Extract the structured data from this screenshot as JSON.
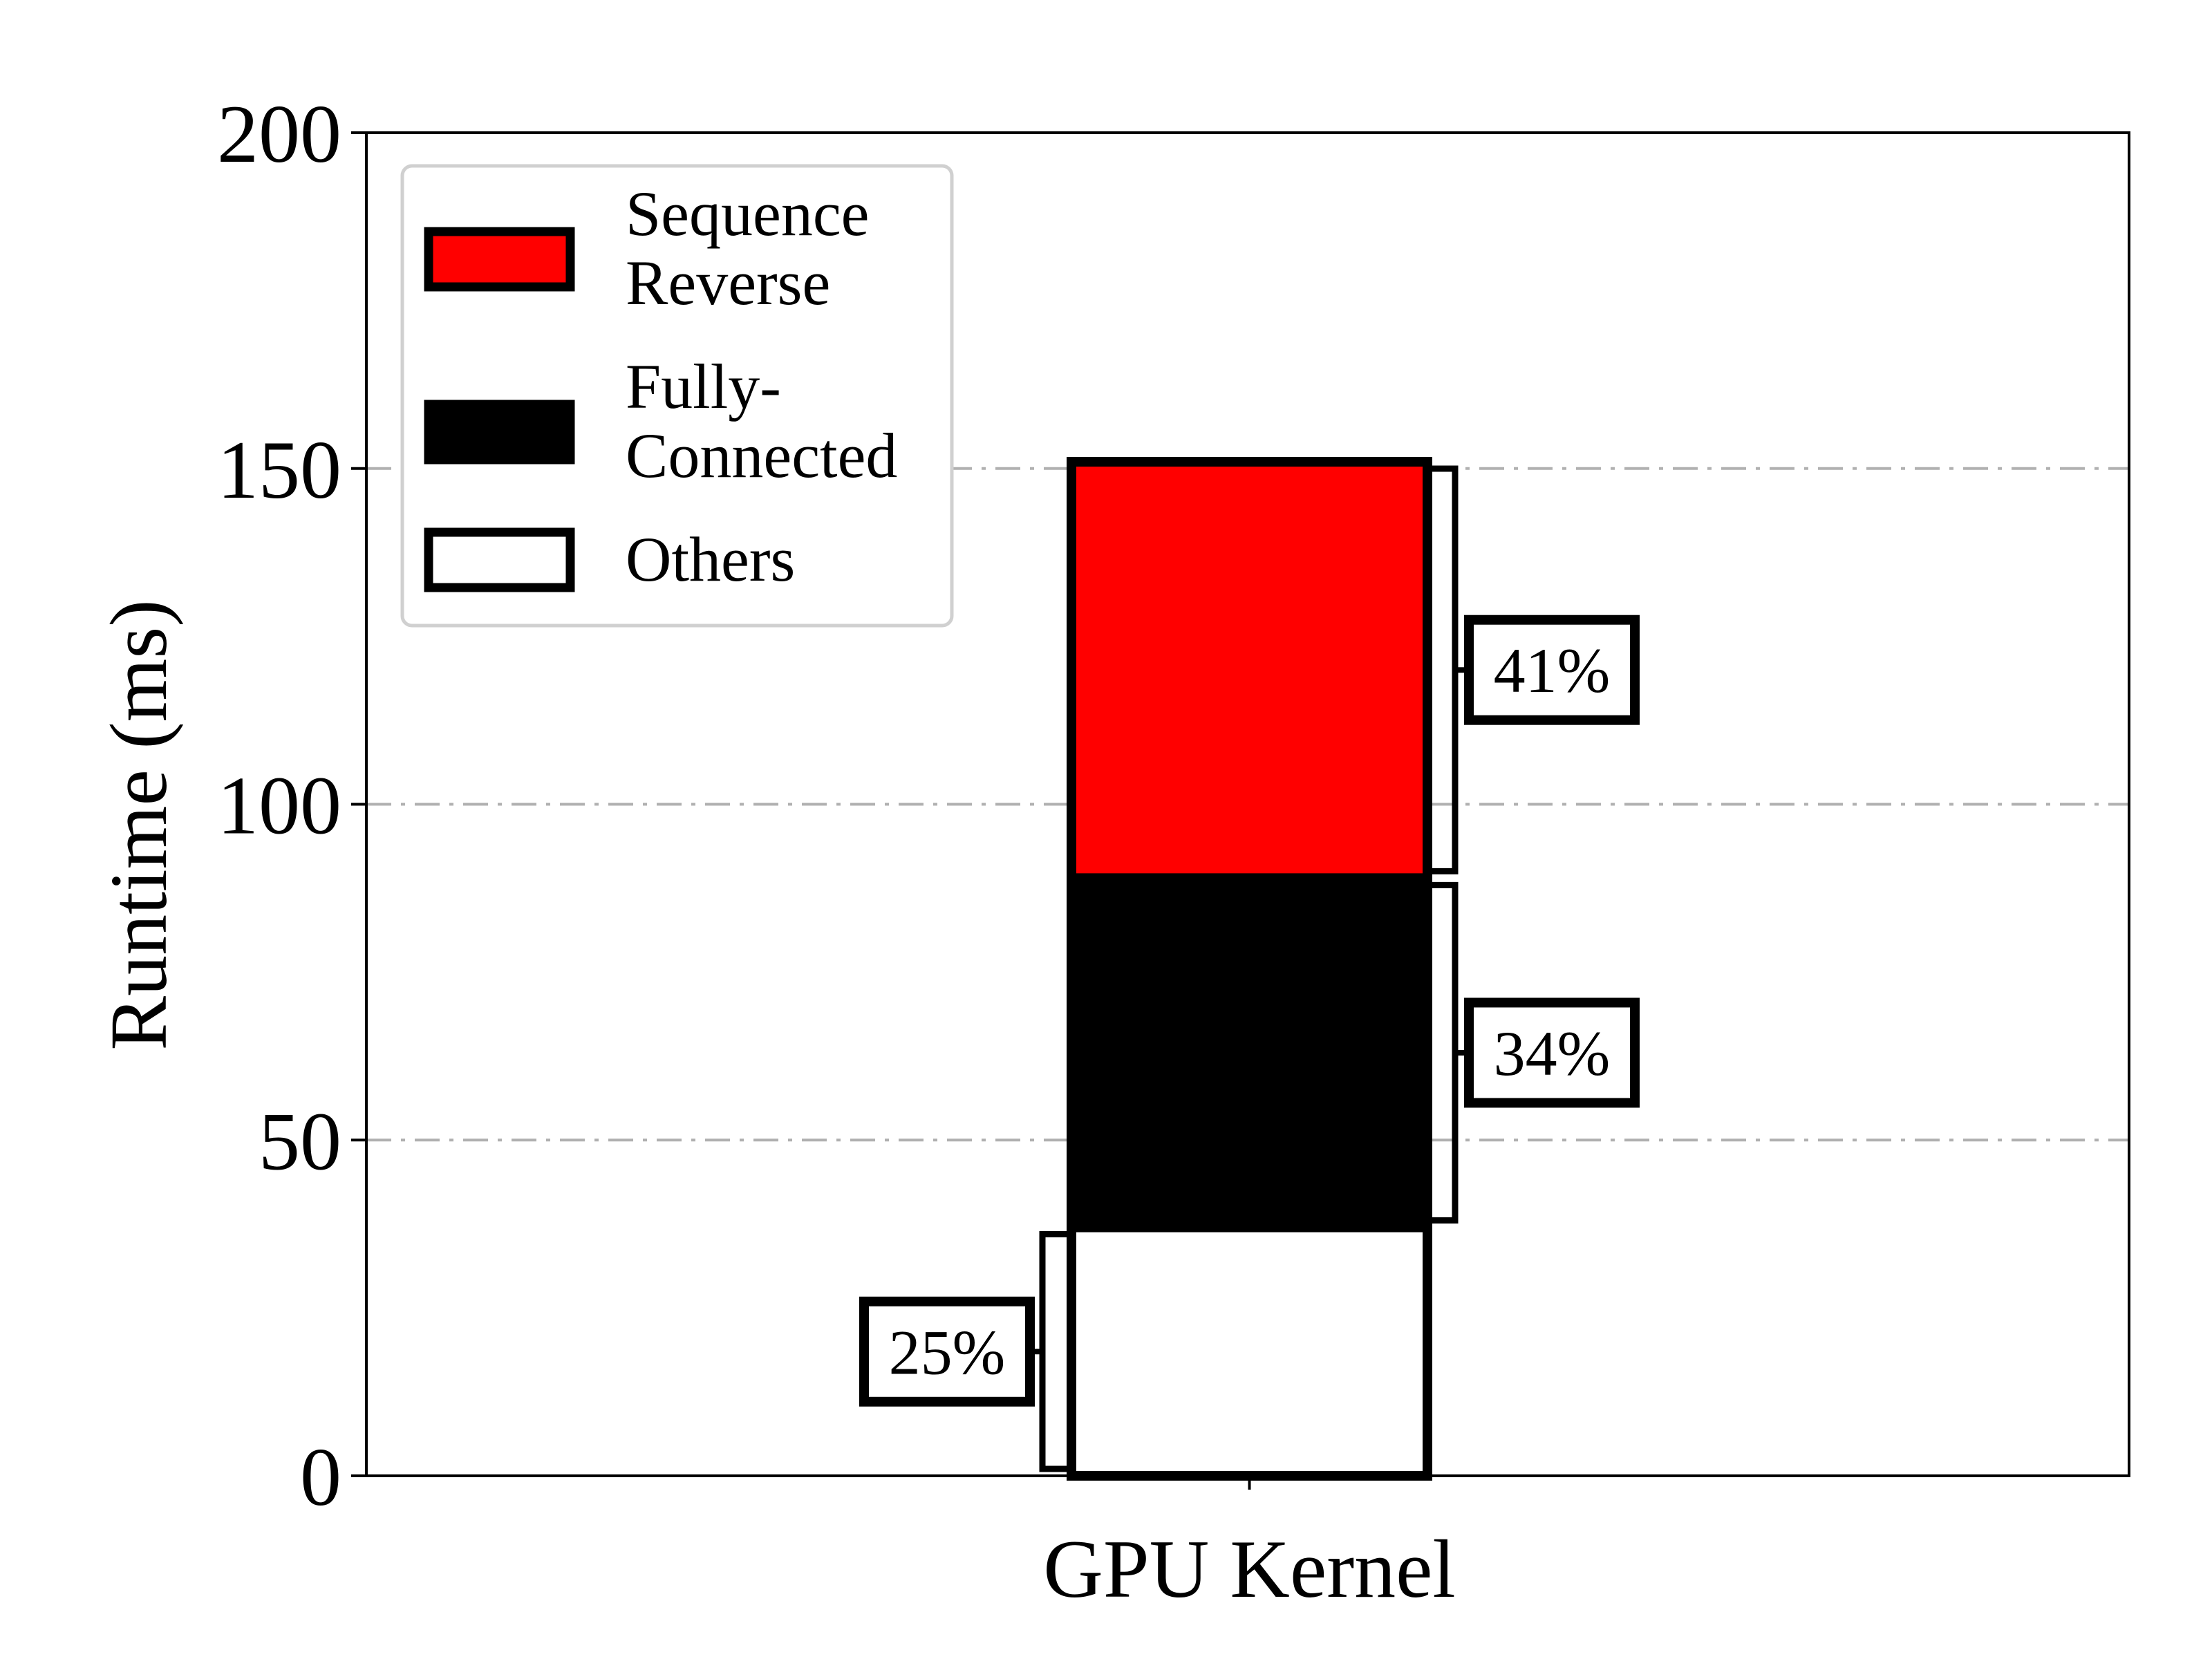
{
  "chart_data": {
    "type": "bar",
    "stacked": true,
    "categories": [
      "GPU Kernel"
    ],
    "series": [
      {
        "name": "Others",
        "values": [
          37
        ],
        "color": "#ffffff",
        "percent_label": "25%"
      },
      {
        "name": "Fully-Connected",
        "values": [
          52
        ],
        "color": "#000000",
        "percent_label": "34%"
      },
      {
        "name": "Sequence Reverse",
        "values": [
          62
        ],
        "color": "#ff0000",
        "percent_label": "41%"
      }
    ],
    "title": "",
    "xlabel": "",
    "ylabel": "Runtime (ms)",
    "ylim": [
      0,
      200
    ],
    "yticks": [
      0,
      50,
      100,
      150,
      200
    ],
    "grid": "horizontal dash-dot",
    "legend": {
      "placement": "top-left",
      "entries": [
        {
          "lines": [
            "Sequence",
            "Reverse"
          ],
          "color": "#ff0000"
        },
        {
          "lines": [
            "Fully-",
            "Connected"
          ],
          "color": "#000000"
        },
        {
          "lines": [
            "Others"
          ],
          "color": "#ffffff"
        }
      ]
    }
  }
}
